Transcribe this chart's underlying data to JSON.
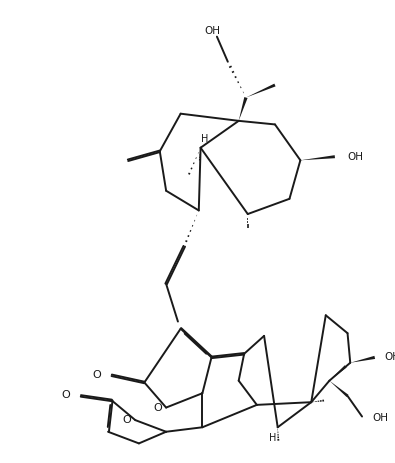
{
  "bg_color": "#ffffff",
  "line_color": "#1a1a1a",
  "lw": 1.4,
  "figsize": [
    3.95,
    4.63
  ],
  "dpi": 100,
  "xlim": [
    0,
    10
  ],
  "ylim": [
    0,
    12
  ]
}
